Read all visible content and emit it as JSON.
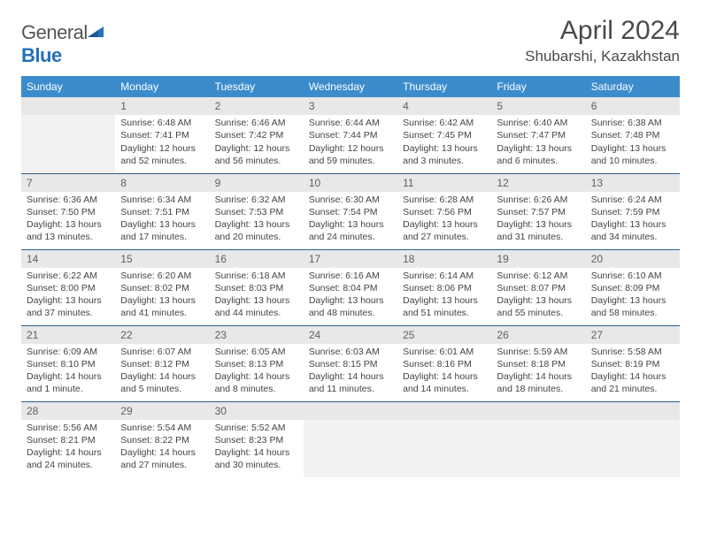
{
  "logo": {
    "text_a": "General",
    "text_b": "Blue"
  },
  "title": "April 2024",
  "location": "Shubarshi, Kazakhstan",
  "colors": {
    "header_bg": "#3c8ccc",
    "header_fg": "#ffffff",
    "daynum_bg": "#e8e8e8",
    "row_border": "#2f5e8a",
    "logo_blue": "#2671b8"
  },
  "weekdays": [
    "Sunday",
    "Monday",
    "Tuesday",
    "Wednesday",
    "Thursday",
    "Friday",
    "Saturday"
  ],
  "rows": [
    [
      null,
      {
        "n": "1",
        "sr": "6:48 AM",
        "ss": "7:41 PM",
        "dl": "12 hours and 52 minutes."
      },
      {
        "n": "2",
        "sr": "6:46 AM",
        "ss": "7:42 PM",
        "dl": "12 hours and 56 minutes."
      },
      {
        "n": "3",
        "sr": "6:44 AM",
        "ss": "7:44 PM",
        "dl": "12 hours and 59 minutes."
      },
      {
        "n": "4",
        "sr": "6:42 AM",
        "ss": "7:45 PM",
        "dl": "13 hours and 3 minutes."
      },
      {
        "n": "5",
        "sr": "6:40 AM",
        "ss": "7:47 PM",
        "dl": "13 hours and 6 minutes."
      },
      {
        "n": "6",
        "sr": "6:38 AM",
        "ss": "7:48 PM",
        "dl": "13 hours and 10 minutes."
      }
    ],
    [
      {
        "n": "7",
        "sr": "6:36 AM",
        "ss": "7:50 PM",
        "dl": "13 hours and 13 minutes."
      },
      {
        "n": "8",
        "sr": "6:34 AM",
        "ss": "7:51 PM",
        "dl": "13 hours and 17 minutes."
      },
      {
        "n": "9",
        "sr": "6:32 AM",
        "ss": "7:53 PM",
        "dl": "13 hours and 20 minutes."
      },
      {
        "n": "10",
        "sr": "6:30 AM",
        "ss": "7:54 PM",
        "dl": "13 hours and 24 minutes."
      },
      {
        "n": "11",
        "sr": "6:28 AM",
        "ss": "7:56 PM",
        "dl": "13 hours and 27 minutes."
      },
      {
        "n": "12",
        "sr": "6:26 AM",
        "ss": "7:57 PM",
        "dl": "13 hours and 31 minutes."
      },
      {
        "n": "13",
        "sr": "6:24 AM",
        "ss": "7:59 PM",
        "dl": "13 hours and 34 minutes."
      }
    ],
    [
      {
        "n": "14",
        "sr": "6:22 AM",
        "ss": "8:00 PM",
        "dl": "13 hours and 37 minutes."
      },
      {
        "n": "15",
        "sr": "6:20 AM",
        "ss": "8:02 PM",
        "dl": "13 hours and 41 minutes."
      },
      {
        "n": "16",
        "sr": "6:18 AM",
        "ss": "8:03 PM",
        "dl": "13 hours and 44 minutes."
      },
      {
        "n": "17",
        "sr": "6:16 AM",
        "ss": "8:04 PM",
        "dl": "13 hours and 48 minutes."
      },
      {
        "n": "18",
        "sr": "6:14 AM",
        "ss": "8:06 PM",
        "dl": "13 hours and 51 minutes."
      },
      {
        "n": "19",
        "sr": "6:12 AM",
        "ss": "8:07 PM",
        "dl": "13 hours and 55 minutes."
      },
      {
        "n": "20",
        "sr": "6:10 AM",
        "ss": "8:09 PM",
        "dl": "13 hours and 58 minutes."
      }
    ],
    [
      {
        "n": "21",
        "sr": "6:09 AM",
        "ss": "8:10 PM",
        "dl": "14 hours and 1 minute."
      },
      {
        "n": "22",
        "sr": "6:07 AM",
        "ss": "8:12 PM",
        "dl": "14 hours and 5 minutes."
      },
      {
        "n": "23",
        "sr": "6:05 AM",
        "ss": "8:13 PM",
        "dl": "14 hours and 8 minutes."
      },
      {
        "n": "24",
        "sr": "6:03 AM",
        "ss": "8:15 PM",
        "dl": "14 hours and 11 minutes."
      },
      {
        "n": "25",
        "sr": "6:01 AM",
        "ss": "8:16 PM",
        "dl": "14 hours and 14 minutes."
      },
      {
        "n": "26",
        "sr": "5:59 AM",
        "ss": "8:18 PM",
        "dl": "14 hours and 18 minutes."
      },
      {
        "n": "27",
        "sr": "5:58 AM",
        "ss": "8:19 PM",
        "dl": "14 hours and 21 minutes."
      }
    ],
    [
      {
        "n": "28",
        "sr": "5:56 AM",
        "ss": "8:21 PM",
        "dl": "14 hours and 24 minutes."
      },
      {
        "n": "29",
        "sr": "5:54 AM",
        "ss": "8:22 PM",
        "dl": "14 hours and 27 minutes."
      },
      {
        "n": "30",
        "sr": "5:52 AM",
        "ss": "8:23 PM",
        "dl": "14 hours and 30 minutes."
      },
      null,
      null,
      null,
      null
    ]
  ],
  "labels": {
    "sunrise": "Sunrise:",
    "sunset": "Sunset:",
    "daylight": "Daylight:"
  }
}
